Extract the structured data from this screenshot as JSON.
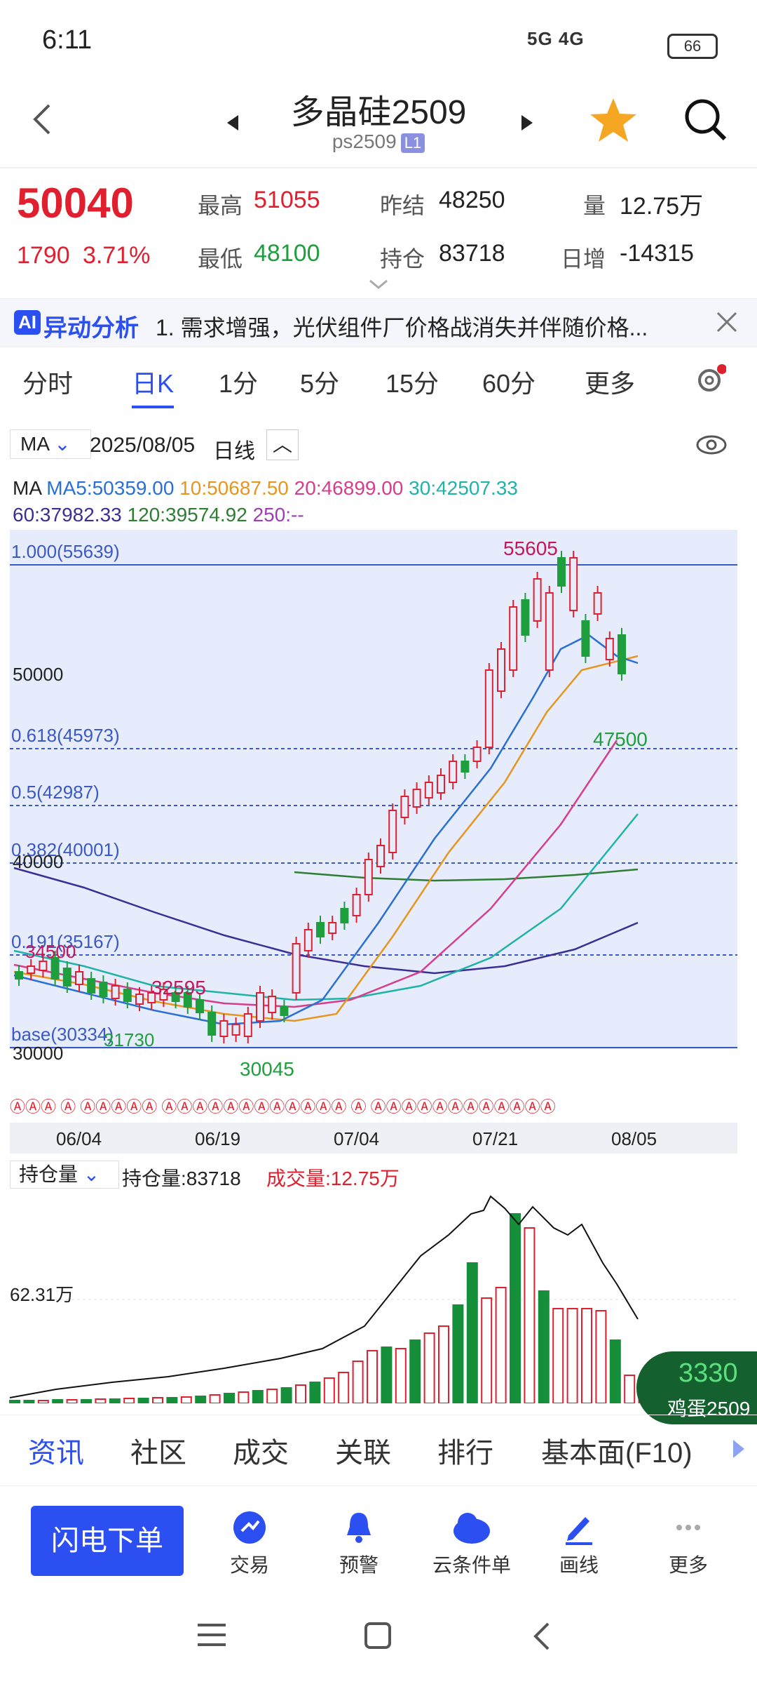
{
  "status": {
    "time": "6:11",
    "network": "5G 4G",
    "battery": "66"
  },
  "header": {
    "title": "多晶硅2509",
    "code": "ps2509",
    "badge": "L1"
  },
  "quote": {
    "price": "50040",
    "change": "1790",
    "change_pct": "3.71%",
    "high_label": "最高",
    "high": "51055",
    "low_label": "最低",
    "low": "48100",
    "prev_settle_label": "昨结",
    "prev_settle": "48250",
    "open_interest_label": "持仓",
    "open_interest": "83718",
    "volume_label": "量",
    "volume": "12.75万",
    "daily_inc_label": "日增",
    "daily_inc": "-14315"
  },
  "ai_bar": {
    "badge": "AI",
    "title": "异动分析",
    "text": "1. 需求增强，光伏组件厂价格战消失并伴随价格..."
  },
  "period_tabs": [
    "分时",
    "日K",
    "1分",
    "5分",
    "15分",
    "60分",
    "更多"
  ],
  "chart_header": {
    "indicator": "MA",
    "date": "2025/08/05",
    "period": "日线"
  },
  "ma_line": {
    "label": "MA",
    "ma5": "MA5:50359.00",
    "ma10": "10:50687.50",
    "ma20": "20:46899.00",
    "ma30": "30:42507.33",
    "ma60": "60:37982.33",
    "ma120": "120:39574.92",
    "ma250": "250:--"
  },
  "chart_labels": {
    "fib_1": "1.000(55639)",
    "fib_618": "0.618(45973)",
    "fib_5": "0.5(42987)",
    "fib_382": "0.382(40001)",
    "fib_191": "0.191(35167)",
    "fib_base": "base(30334)",
    "y_50000": "50000",
    "y_40000": "40000",
    "y_30000": "30000",
    "peak": "55605",
    "trough": "30045",
    "ann_47500": "47500",
    "ann_34500": "34500",
    "ann_32595": "32595",
    "ann_31730": "31730"
  },
  "x_axis": [
    "06/04",
    "06/19",
    "07/04",
    "07/21",
    "08/05"
  ],
  "sub_chart": {
    "indicator": "持仓量",
    "oi_text": "持仓量:83718",
    "vol_text": "成交量:12.75万",
    "y_label": "62.31万"
  },
  "float_badge": {
    "value": "3330",
    "name": "鸡蛋2509"
  },
  "bottom_tabs": [
    "资讯",
    "社区",
    "成交",
    "关联",
    "排行",
    "基本面(F10)"
  ],
  "action_bar": {
    "primary": "闪电下单",
    "items": [
      "交易",
      "预警",
      "云条件单",
      "画线",
      "更多"
    ]
  },
  "colors": {
    "red": "#e0202e",
    "green": "#1e9e3c",
    "accent": "#2b4ff0"
  }
}
